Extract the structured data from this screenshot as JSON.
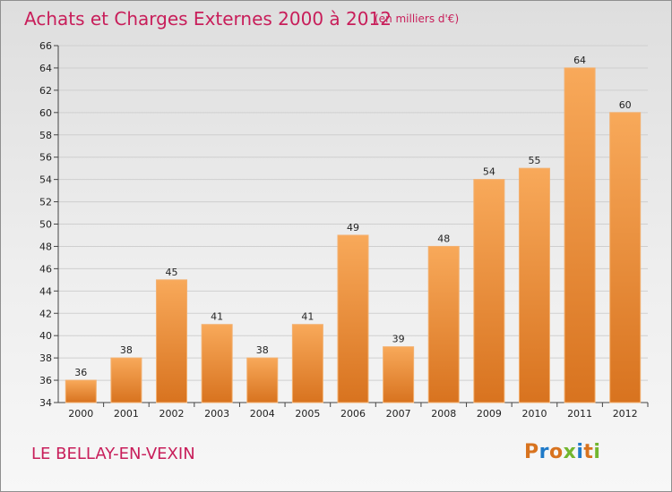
{
  "page": {
    "title": "Achats et Charges Externes 2000 à 2012",
    "subtitle": "(en milliers d'€)",
    "commune": "LE BELLAY-EN-VEXIN",
    "brand": "Proxiti"
  },
  "colors": {
    "title": "#c81e5a",
    "bar_top": "#f8a95a",
    "bar_bottom": "#d8731f",
    "axis": "#444444",
    "grid": "#cfcfcf",
    "brand_letters": [
      "#d8731f",
      "#1f7ac8",
      "#d8731f",
      "#72b62f",
      "#1f7ac8",
      "#d8731f",
      "#72b62f"
    ]
  },
  "chart_data": {
    "type": "bar",
    "title": "Achats et Charges Externes 2000 à 2012",
    "subtitle": "(en milliers d'€)",
    "categories": [
      "2000",
      "2001",
      "2002",
      "2003",
      "2004",
      "2005",
      "2006",
      "2007",
      "2008",
      "2009",
      "2010",
      "2011",
      "2012"
    ],
    "values": [
      36,
      38,
      45,
      41,
      38,
      41,
      49,
      39,
      48,
      54,
      55,
      64,
      60
    ],
    "ylim": [
      34,
      66
    ],
    "y_ticks": [
      "34",
      "36",
      "38",
      "40",
      "42",
      "44",
      "46",
      "48",
      "50",
      "52",
      "54",
      "56",
      "58",
      "60",
      "62",
      "64",
      "66"
    ],
    "grid": true
  }
}
